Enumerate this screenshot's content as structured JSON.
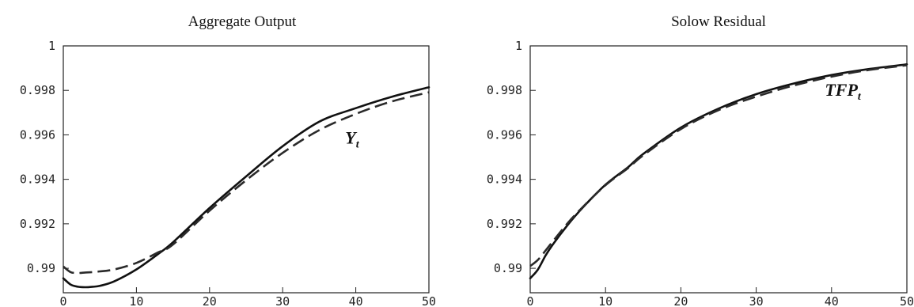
{
  "chart_data": [
    {
      "type": "line",
      "title": "Aggregate Output",
      "xlabel": "",
      "ylabel": "",
      "xlim": [
        0,
        50
      ],
      "ylim": [
        0.9889,
        1.0
      ],
      "xticks": [
        0,
        10,
        20,
        30,
        40,
        50
      ],
      "yticks": [
        0.99,
        0.992,
        0.994,
        0.996,
        0.998,
        1
      ],
      "ytick_labels": [
        "0.99",
        "0.992",
        "0.994",
        "0.996",
        "0.998",
        "1"
      ],
      "grid": false,
      "annotations": [
        {
          "text": "Y",
          "subscript": "t",
          "x": 39.5,
          "y": 0.9956
        }
      ],
      "series": [
        {
          "style": "solid",
          "x": [
            0,
            1,
            2,
            3,
            4,
            5,
            7,
            10,
            13,
            15,
            20,
            25,
            30,
            35,
            40,
            45,
            50
          ],
          "values": [
            0.98955,
            0.98927,
            0.98917,
            0.98915,
            0.98917,
            0.98921,
            0.98942,
            0.98995,
            0.99065,
            0.99117,
            0.99271,
            0.99413,
            0.99549,
            0.99659,
            0.9972,
            0.99772,
            0.99814
          ]
        },
        {
          "style": "dashed",
          "x": [
            0,
            1,
            2,
            3,
            4,
            5,
            7,
            10,
            13,
            15,
            20,
            25,
            30,
            35,
            40,
            45,
            50
          ],
          "values": [
            0.99008,
            0.98983,
            0.98979,
            0.98981,
            0.98983,
            0.98986,
            0.98995,
            0.99024,
            0.99072,
            0.99107,
            0.99259,
            0.99396,
            0.99519,
            0.99621,
            0.99694,
            0.99751,
            0.99791
          ]
        }
      ]
    },
    {
      "type": "line",
      "title": "Solow Residual",
      "xlabel": "",
      "ylabel": "",
      "xlim": [
        0,
        50
      ],
      "ylim": [
        0.9889,
        1.0
      ],
      "xticks": [
        0,
        10,
        20,
        30,
        40,
        50
      ],
      "yticks": [
        0.99,
        0.992,
        0.994,
        0.996,
        0.998,
        1
      ],
      "ytick_labels": [
        "0.99",
        "0.992",
        "0.994",
        "0.996",
        "0.998",
        "1"
      ],
      "grid": false,
      "annotations": [
        {
          "text": "TFP",
          "subscript": "t",
          "x": 41.5,
          "y": 0.99775
        }
      ],
      "series": [
        {
          "style": "solid",
          "x": [
            0,
            1,
            2,
            3,
            5,
            7,
            10,
            13,
            15,
            20,
            25,
            30,
            35,
            40,
            45,
            50
          ],
          "values": [
            0.98955,
            0.98993,
            0.99055,
            0.99107,
            0.99196,
            0.99274,
            0.99376,
            0.99455,
            0.99514,
            0.99633,
            0.99718,
            0.99783,
            0.99831,
            0.99869,
            0.99896,
            0.99917
          ]
        },
        {
          "style": "dashed",
          "x": [
            0,
            1,
            2,
            3,
            5,
            7,
            10,
            13,
            15,
            20,
            25,
            30,
            35,
            40,
            45,
            50
          ],
          "values": [
            0.9901,
            0.99037,
            0.99078,
            0.99121,
            0.99204,
            0.99276,
            0.99374,
            0.99451,
            0.99508,
            0.99626,
            0.99711,
            0.99772,
            0.99822,
            0.99862,
            0.99892,
            0.99913
          ]
        }
      ]
    }
  ]
}
